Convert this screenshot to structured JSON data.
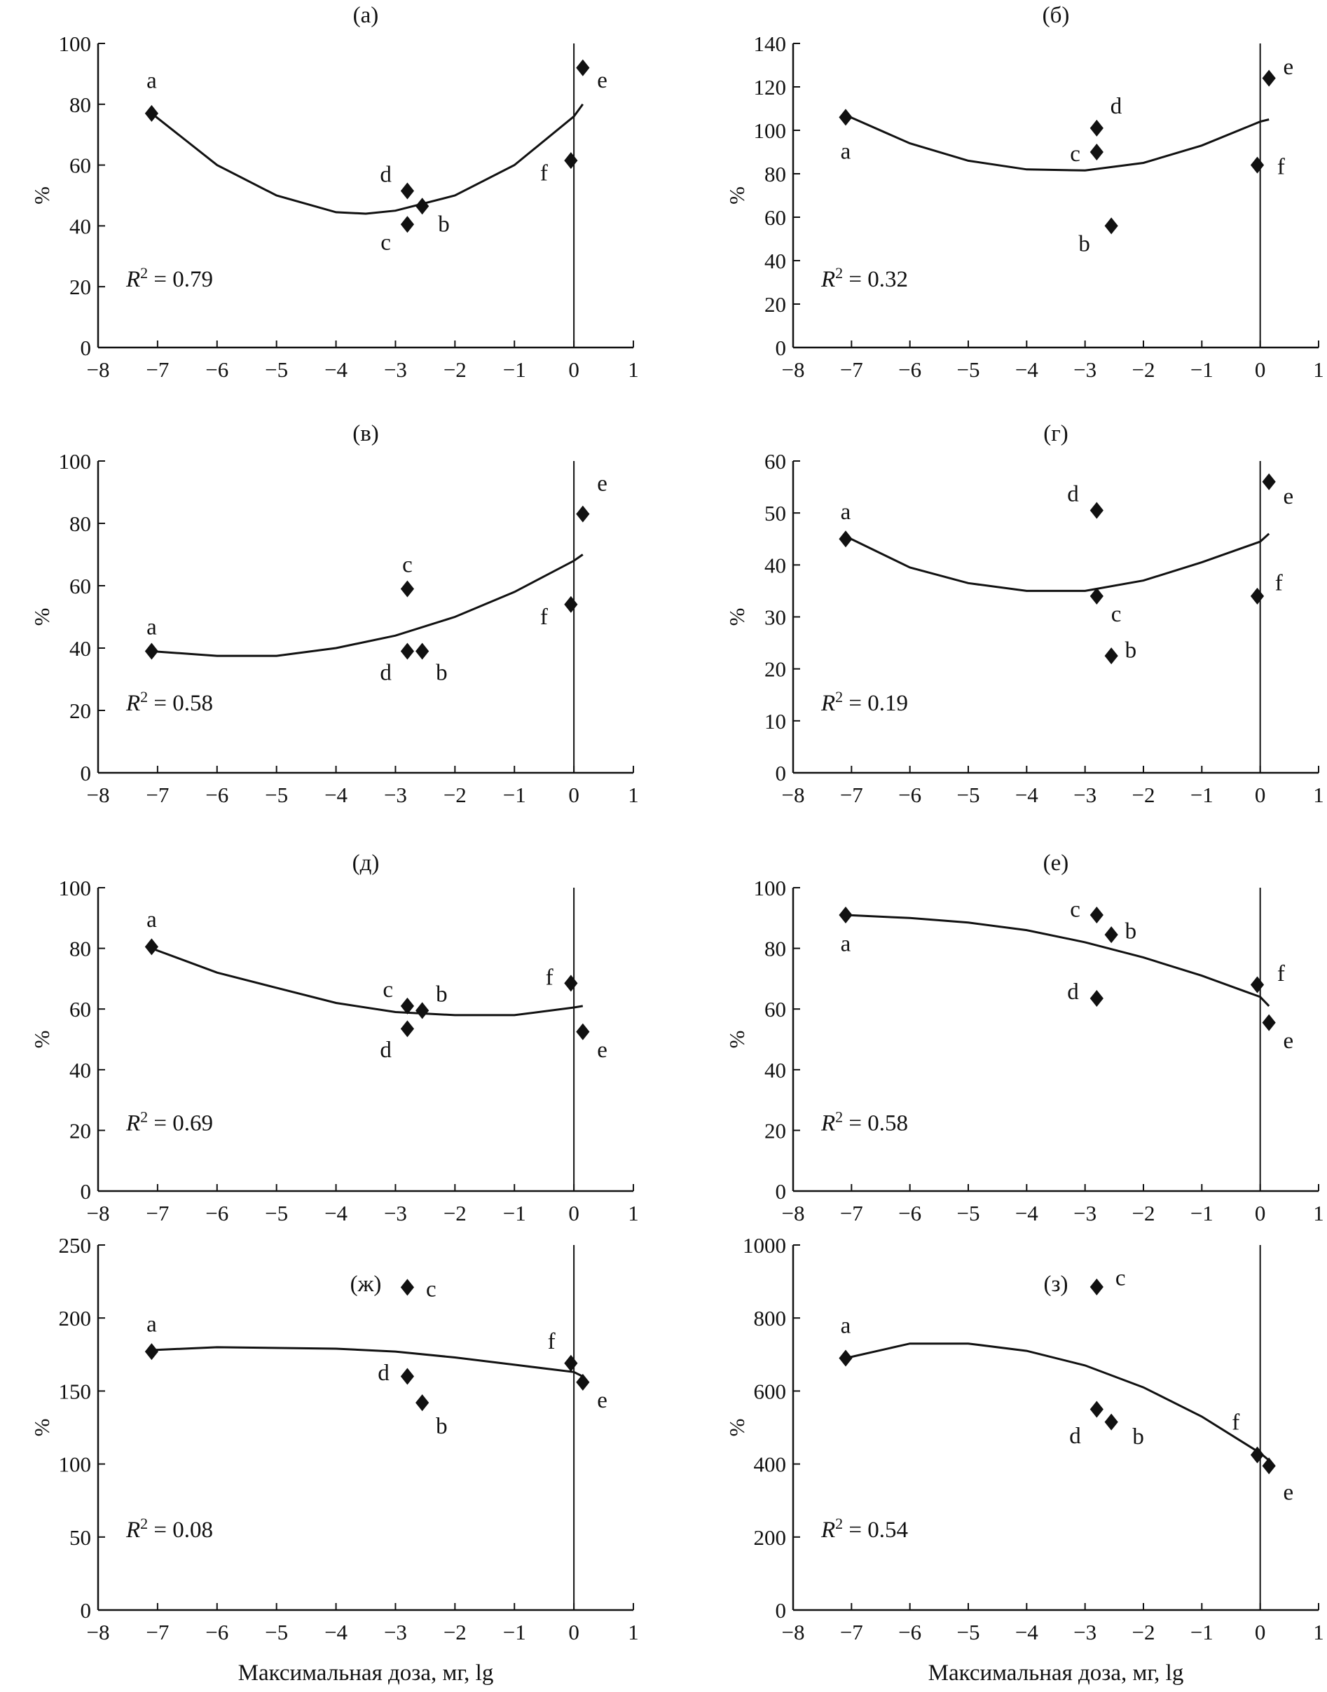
{
  "chart_data": [
    {
      "type": "scatter",
      "title": "(а)",
      "xlabel": "",
      "ylabel": "%",
      "xlim": [
        -8,
        1
      ],
      "ylim": [
        0,
        100
      ],
      "ystep": 20,
      "r2": "= 0.79",
      "points": [
        {
          "label": "a",
          "x": -7.1,
          "y": 77
        },
        {
          "label": "d",
          "x": -2.8,
          "y": 51.5
        },
        {
          "label": "c",
          "x": -2.8,
          "y": 40.5
        },
        {
          "label": "b",
          "x": -2.55,
          "y": 46.5
        },
        {
          "label": "f",
          "x": -0.05,
          "y": 61.5
        },
        {
          "label": "e",
          "x": 0.15,
          "y": 92
        }
      ],
      "trend": {
        "x": [
          -7.1,
          -6,
          -5,
          -4,
          -3.5,
          -3,
          -2,
          -1,
          0,
          0.15
        ],
        "y": [
          77,
          60,
          50,
          44.5,
          44,
          45,
          50,
          60,
          76,
          80
        ]
      }
    },
    {
      "type": "scatter",
      "title": "(б)",
      "xlabel": "",
      "ylabel": "%",
      "xlim": [
        -8,
        1
      ],
      "ylim": [
        0,
        140
      ],
      "ystep": 20,
      "r2": "= 0.32",
      "points": [
        {
          "label": "a",
          "x": -7.1,
          "y": 106
        },
        {
          "label": "d",
          "x": -2.8,
          "y": 101
        },
        {
          "label": "c",
          "x": -2.8,
          "y": 90
        },
        {
          "label": "b",
          "x": -2.55,
          "y": 56
        },
        {
          "label": "f",
          "x": -0.05,
          "y": 84
        },
        {
          "label": "e",
          "x": 0.15,
          "y": 124
        }
      ],
      "trend": {
        "x": [
          -7.1,
          -6,
          -5,
          -4,
          -3,
          -2,
          -1,
          0,
          0.15
        ],
        "y": [
          107,
          94,
          86,
          82,
          81.5,
          85,
          93,
          104,
          105
        ]
      }
    },
    {
      "type": "scatter",
      "title": "(в)",
      "xlabel": "",
      "ylabel": "%",
      "xlim": [
        -8,
        1
      ],
      "ylim": [
        0,
        100
      ],
      "ystep": 20,
      "r2": "= 0.58",
      "points": [
        {
          "label": "a",
          "x": -7.1,
          "y": 39
        },
        {
          "label": "c",
          "x": -2.8,
          "y": 59
        },
        {
          "label": "d",
          "x": -2.8,
          "y": 39
        },
        {
          "label": "b",
          "x": -2.55,
          "y": 39
        },
        {
          "label": "f",
          "x": -0.05,
          "y": 54
        },
        {
          "label": "e",
          "x": 0.15,
          "y": 83
        }
      ],
      "trend": {
        "x": [
          -7.1,
          -6,
          -5,
          -4,
          -3,
          -2,
          -1,
          0,
          0.15
        ],
        "y": [
          39,
          37.5,
          37.5,
          40,
          44,
          50,
          58,
          68,
          70
        ]
      }
    },
    {
      "type": "scatter",
      "title": "(г)",
      "xlabel": "",
      "ylabel": "%",
      "xlim": [
        -8,
        1
      ],
      "ylim": [
        0,
        60
      ],
      "ystep": 10,
      "r2": "= 0.19",
      "points": [
        {
          "label": "a",
          "x": -7.1,
          "y": 45
        },
        {
          "label": "d",
          "x": -2.8,
          "y": 50.5
        },
        {
          "label": "c",
          "x": -2.8,
          "y": 34
        },
        {
          "label": "b",
          "x": -2.55,
          "y": 22.5
        },
        {
          "label": "f",
          "x": -0.05,
          "y": 34
        },
        {
          "label": "e",
          "x": 0.15,
          "y": 56
        }
      ],
      "trend": {
        "x": [
          -7.1,
          -6,
          -5,
          -4,
          -3,
          -2,
          -1,
          0,
          0.15
        ],
        "y": [
          45.5,
          39.5,
          36.5,
          35,
          35,
          37,
          40.5,
          44.5,
          46
        ]
      }
    },
    {
      "type": "scatter",
      "title": "(д)",
      "xlabel": "",
      "ylabel": "%",
      "xlim": [
        -8,
        1
      ],
      "ylim": [
        0,
        100
      ],
      "ystep": 20,
      "r2": "= 0.69",
      "points": [
        {
          "label": "a",
          "x": -7.1,
          "y": 80.5
        },
        {
          "label": "c",
          "x": -2.8,
          "y": 61
        },
        {
          "label": "d",
          "x": -2.8,
          "y": 53.5
        },
        {
          "label": "b",
          "x": -2.55,
          "y": 59.5
        },
        {
          "label": "f",
          "x": -0.05,
          "y": 68.5
        },
        {
          "label": "e",
          "x": 0.15,
          "y": 52.5
        }
      ],
      "trend": {
        "x": [
          -7.1,
          -6,
          -5,
          -4,
          -3,
          -2,
          -1,
          0,
          0.15
        ],
        "y": [
          80,
          72,
          67,
          62,
          59,
          58,
          58,
          60.5,
          61
        ]
      }
    },
    {
      "type": "scatter",
      "title": "(е)",
      "xlabel": "",
      "ylabel": "%",
      "xlim": [
        -8,
        1
      ],
      "ylim": [
        0,
        100
      ],
      "ystep": 20,
      "r2": "= 0.58",
      "points": [
        {
          "label": "a",
          "x": -7.1,
          "y": 91
        },
        {
          "label": "c",
          "x": -2.8,
          "y": 91
        },
        {
          "label": "b",
          "x": -2.55,
          "y": 84.5
        },
        {
          "label": "d",
          "x": -2.8,
          "y": 63.5
        },
        {
          "label": "f",
          "x": -0.05,
          "y": 68
        },
        {
          "label": "e",
          "x": 0.15,
          "y": 55.5
        }
      ],
      "trend": {
        "x": [
          -7.1,
          -6,
          -5,
          -4,
          -3,
          -2,
          -1,
          0,
          0.15
        ],
        "y": [
          91,
          90,
          88.5,
          86,
          82,
          77,
          71,
          64,
          61
        ]
      }
    },
    {
      "type": "scatter",
      "title": "(ж)",
      "xlabel": "Максимальная доза, мг, lg",
      "ylabel": "%",
      "xlim": [
        -8,
        1
      ],
      "ylim": [
        0,
        250
      ],
      "ystep": 50,
      "r2": "= 0.08",
      "points": [
        {
          "label": "a",
          "x": -7.1,
          "y": 177
        },
        {
          "label": "c",
          "x": -2.8,
          "y": 221
        },
        {
          "label": "d",
          "x": -2.8,
          "y": 160
        },
        {
          "label": "b",
          "x": -2.55,
          "y": 142
        },
        {
          "label": "f",
          "x": -0.05,
          "y": 169
        },
        {
          "label": "e",
          "x": 0.15,
          "y": 156
        }
      ],
      "trend": {
        "x": [
          -7.1,
          -6,
          -4,
          -3,
          -2,
          -1,
          0,
          0.15
        ],
        "y": [
          178,
          180,
          179,
          177,
          173,
          168,
          163,
          160
        ]
      }
    },
    {
      "type": "scatter",
      "title": "(з)",
      "xlabel": "Максимальная доза, мг, lg",
      "ylabel": "%",
      "xlim": [
        -8,
        1
      ],
      "ylim": [
        0,
        1000
      ],
      "ystep": 200,
      "r2": "= 0.54",
      "points": [
        {
          "label": "a",
          "x": -7.1,
          "y": 690
        },
        {
          "label": "c",
          "x": -2.8,
          "y": 885
        },
        {
          "label": "d",
          "x": -2.8,
          "y": 550
        },
        {
          "label": "b",
          "x": -2.55,
          "y": 515
        },
        {
          "label": "f",
          "x": -0.05,
          "y": 425
        },
        {
          "label": "e",
          "x": 0.15,
          "y": 395
        }
      ],
      "trend": {
        "x": [
          -7.1,
          -6,
          -5,
          -4,
          -3,
          -2,
          -1,
          0,
          0.15
        ],
        "y": [
          690,
          730,
          730,
          710,
          670,
          610,
          530,
          430,
          410
        ]
      }
    }
  ]
}
